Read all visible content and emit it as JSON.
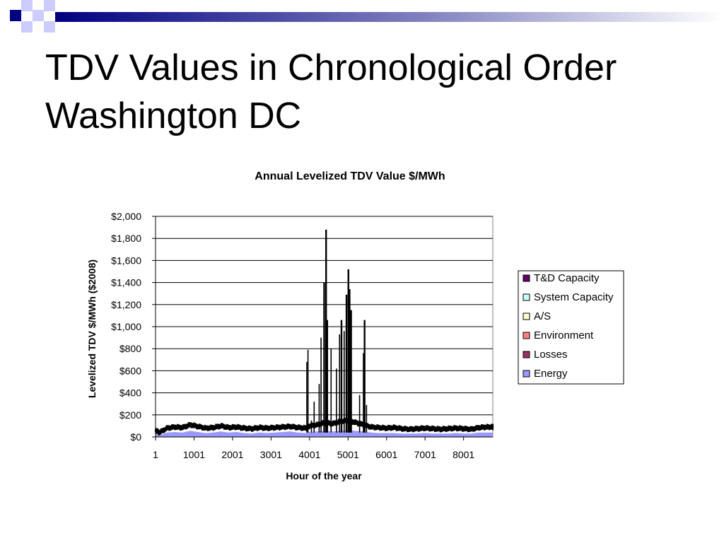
{
  "slide": {
    "title_line1": "TDV Values in Chronological Order",
    "title_line2": "Washington DC"
  },
  "colors": {
    "deco_dark": "#000080",
    "deco_light": "#ccccff",
    "line": "#000000",
    "fill": "#9999ff"
  },
  "chart_data": {
    "type": "area",
    "title": "Annual Levelized TDV Value $/MWh",
    "xlabel": "Hour of the year",
    "ylabel": "Levelized TDV $/MWh ($2008)",
    "ylim": [
      0,
      2000
    ],
    "xlim": [
      1,
      8760
    ],
    "grid": true,
    "legend_position": "right",
    "y_ticks": [
      0,
      200,
      400,
      600,
      800,
      1000,
      1200,
      1400,
      1600,
      1800,
      2000
    ],
    "y_tick_labels": [
      "$0",
      "$200",
      "$400",
      "$600",
      "$800",
      "$1,000",
      "$1,200",
      "$1,400",
      "$1,600",
      "$1,800",
      "$2,000"
    ],
    "x_ticks": [
      1,
      1001,
      2001,
      3001,
      4001,
      5001,
      6001,
      7001,
      8001
    ],
    "x_tick_labels": [
      "1",
      "1001",
      "2001",
      "3001",
      "4001",
      "5001",
      "6001",
      "7001",
      "8001"
    ],
    "series": [
      {
        "name": "T&D Capacity",
        "color": "#660066"
      },
      {
        "name": "System Capacity",
        "color": "#ccffff"
      },
      {
        "name": "A/S",
        "color": "#ffffcc"
      },
      {
        "name": "Environment",
        "color": "#ff8080"
      },
      {
        "name": "Losses",
        "color": "#993366"
      },
      {
        "name": "Energy",
        "color": "#9999ff"
      }
    ],
    "baseline": {
      "x": [
        1,
        100,
        300,
        500,
        700,
        900,
        1100,
        1300,
        1500,
        1700,
        1900,
        2100,
        2300,
        2500,
        2700,
        2900,
        3100,
        3300,
        3500,
        3700,
        3900,
        4000,
        4200,
        4400,
        4600,
        4800,
        5000,
        5200,
        5400,
        5600,
        5800,
        6000,
        6200,
        6400,
        6600,
        6800,
        7000,
        7200,
        7400,
        7600,
        7800,
        8000,
        8200,
        8400,
        8600,
        8760
      ],
      "y": [
        60,
        40,
        80,
        90,
        85,
        110,
        95,
        80,
        85,
        100,
        85,
        90,
        80,
        75,
        85,
        80,
        85,
        90,
        95,
        85,
        80,
        100,
        110,
        130,
        120,
        140,
        150,
        130,
        110,
        90,
        85,
        80,
        85,
        75,
        70,
        75,
        80,
        75,
        70,
        75,
        80,
        75,
        70,
        85,
        90,
        90
      ]
    },
    "energy_area": {
      "x": [
        1,
        100,
        300,
        500,
        700,
        900,
        1100,
        1300,
        1500,
        1700,
        1900,
        2100,
        2300,
        2500,
        2700,
        2900,
        3100,
        3300,
        3500,
        3700,
        3900,
        4000,
        4200,
        4400,
        4600,
        4800,
        5000,
        5200,
        5400,
        5600,
        5800,
        6000,
        6200,
        6400,
        6600,
        6800,
        7000,
        7200,
        7400,
        7600,
        7800,
        8000,
        8200,
        8400,
        8600,
        8760
      ],
      "y": [
        30,
        15,
        40,
        45,
        40,
        55,
        45,
        35,
        40,
        50,
        40,
        45,
        35,
        30,
        40,
        35,
        40,
        45,
        50,
        40,
        35,
        45,
        50,
        55,
        50,
        55,
        60,
        55,
        50,
        40,
        35,
        35,
        35,
        30,
        30,
        30,
        35,
        30,
        30,
        30,
        35,
        30,
        30,
        40,
        40,
        40
      ]
    },
    "spikes": {
      "x": [
        3930,
        3960,
        4050,
        4120,
        4250,
        4300,
        4380,
        4430,
        4460,
        4560,
        4700,
        4780,
        4830,
        4900,
        4960,
        5010,
        5040,
        5080,
        5300,
        5400,
        5430,
        5480
      ],
      "y": [
        680,
        790,
        150,
        320,
        480,
        900,
        1400,
        1880,
        1060,
        800,
        620,
        930,
        1060,
        960,
        1290,
        1520,
        1340,
        1150,
        380,
        760,
        1060,
        290
      ]
    }
  }
}
